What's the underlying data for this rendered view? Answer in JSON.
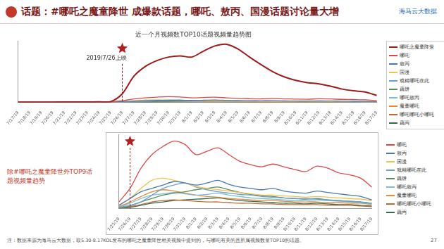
{
  "header": {
    "title": "话题：#哪吒之魔童降世 成爆款话题，哪吒、敖丙、国漫话题讨论量大增",
    "brand": "海马云大数据"
  },
  "chart_data": [
    {
      "type": "line",
      "title": "近一个月视频数TOP10话题视频量趋势图",
      "categories": [
        "7/17/19",
        "7/18/19",
        "7/19/19",
        "7/20/19",
        "7/21/19",
        "7/22/19",
        "7/23/19",
        "7/24/19",
        "7/25/19",
        "7/26/19",
        "7/27/19",
        "7/28/19",
        "7/29/19",
        "7/30/19",
        "7/31/19",
        "8/1/19",
        "8/2/19",
        "8/3/19",
        "8/4/19",
        "8/5/19",
        "8/6/19",
        "8/7/19",
        "8/8/19",
        "8/9/19",
        "8/10/19",
        "8/11/19",
        "8/12/19",
        "8/13/19",
        "8/14/19",
        "8/15/19",
        "8/16/19",
        "8/17/19"
      ],
      "series": [
        {
          "name": "哪吒之魔童降世",
          "color": "#9e1b1b",
          "values": [
            0.5,
            0.5,
            0.6,
            0.6,
            0.7,
            0.7,
            0.8,
            1,
            1.5,
            15,
            45,
            62,
            72,
            78,
            80,
            78,
            88,
            97,
            100,
            92,
            78,
            65,
            53,
            44,
            38,
            34,
            32,
            28,
            23,
            20,
            18,
            12
          ]
        },
        {
          "name": "哪吒",
          "color": "#e04848",
          "values": [
            0.8,
            0.8,
            0.9,
            0.8,
            0.9,
            1,
            0.9,
            1,
            1,
            3,
            6,
            8,
            9.2,
            10,
            9.5,
            8,
            8.5,
            9,
            8,
            7,
            6.5,
            6.2,
            6.6,
            6.2,
            5.8,
            5.5,
            6.3,
            6,
            5.3,
            5,
            4.5,
            3.2
          ]
        },
        {
          "name": "敖丙",
          "color": "#4a78b5",
          "values": [
            0.3,
            0.3,
            0.3,
            0.3,
            0.4,
            0.4,
            0.4,
            0.4,
            0.5,
            1.5,
            2.5,
            3,
            3.5,
            4,
            3.8,
            3.5,
            3.8,
            4.2,
            3.6,
            3.2,
            3,
            2.8,
            3,
            2.6,
            2.4,
            2.3,
            2.6,
            2.4,
            2.2,
            2,
            1.8,
            1.3
          ]
        },
        {
          "name": "国漫",
          "color": "#f2c14e",
          "values": [
            0.4,
            0.4,
            0.4,
            0.4,
            0.4,
            0.4,
            0.5,
            0.5,
            0.5,
            1.5,
            3,
            4.2,
            4.5,
            4.2,
            3.8,
            3.3,
            3,
            2.8,
            2.6,
            2.4,
            2.2,
            2,
            2,
            1.9,
            1.8,
            1.7,
            1.8,
            1.7,
            1.6,
            1.5,
            1.4,
            1.2
          ]
        },
        {
          "name": "戏精哪吒在此",
          "color": "#6a9fd4",
          "values": [
            0.1,
            0.1,
            0.1,
            0.1,
            0.1,
            0.1,
            0.2,
            0.2,
            0.2,
            0.5,
            1,
            2,
            3,
            3.5,
            3.8,
            3.2,
            2.8,
            2.5,
            2.3,
            2.1,
            2,
            1.8,
            1.7,
            1.6,
            1.5,
            1.5,
            1.4,
            1.3,
            1.2,
            1.1,
            1,
            0.8
          ]
        },
        {
          "name": "藕饼",
          "color": "#5b8c5a",
          "values": [
            0.1,
            0.1,
            0.1,
            0.1,
            0.1,
            0.1,
            0.1,
            0.1,
            0.1,
            0.4,
            1,
            1.5,
            2,
            2.3,
            2.5,
            2.8,
            3,
            3.2,
            2.8,
            2.4,
            2.1,
            1.9,
            1.8,
            1.6,
            1.5,
            1.4,
            1.5,
            1.3,
            1.2,
            1.1,
            1,
            0.8
          ]
        },
        {
          "name": "哪吒敖丙",
          "color": "#7bbcd9",
          "values": [
            0.1,
            0.1,
            0.1,
            0.1,
            0.2,
            0.2,
            0.2,
            0.2,
            0.2,
            0.8,
            1.5,
            2,
            2.2,
            2.4,
            2.2,
            2,
            2.1,
            2.3,
            2,
            1.8,
            1.6,
            1.5,
            1.4,
            1.3,
            1.2,
            1.2,
            1.3,
            1.2,
            1.1,
            1,
            0.9,
            0.7
          ]
        },
        {
          "name": "魔童哪吒",
          "color": "#e88a3a",
          "values": [
            0.2,
            0.2,
            0.2,
            0.2,
            0.2,
            0.3,
            0.3,
            0.3,
            0.3,
            1,
            1.8,
            2.5,
            2.8,
            2.6,
            2.3,
            2,
            1.8,
            1.7,
            1.5,
            1.4,
            1.3,
            1.2,
            1.2,
            1.1,
            1,
            1,
            1,
            0.9,
            0.9,
            0.8,
            0.8,
            0.6
          ]
        },
        {
          "name": "哪吒哪吒小哪吒",
          "color": "#c06a30",
          "values": [
            0.1,
            0.1,
            0.1,
            0.1,
            0.1,
            0.1,
            0.1,
            0.1,
            0.1,
            0.3,
            0.6,
            1,
            1.2,
            1.3,
            1.2,
            1.1,
            1,
            1,
            0.9,
            0.8,
            0.8,
            0.7,
            0.7,
            0.6,
            0.6,
            0.6,
            0.6,
            0.5,
            0.5,
            0.5,
            0.4,
            0.3
          ]
        },
        {
          "name": "藕丙",
          "color": "#2f6b4f",
          "values": [
            0.1,
            0.1,
            0.1,
            0.1,
            0.1,
            0.1,
            0.1,
            0.1,
            0.1,
            0.2,
            0.5,
            0.8,
            1,
            1.2,
            1.3,
            1.4,
            1.5,
            1.6,
            1.4,
            1.2,
            1.1,
            1,
            0.9,
            0.8,
            0.8,
            0.7,
            0.8,
            0.7,
            0.6,
            0.6,
            0.5,
            0.4
          ]
        }
      ],
      "ylim": [
        0,
        105
      ],
      "grid": false,
      "legend": "right",
      "tick_labels": "x",
      "annotations": [
        {
          "x": "7/26/19",
          "label": "2019/7/26上映",
          "marker": "star"
        }
      ]
    },
    {
      "type": "line",
      "title": "除#哪吒之魔童降世外TOP9话题视频量趋势",
      "categories": [
        "7/25/19",
        "7/26/19",
        "7/27/19",
        "7/28/19",
        "7/29/19",
        "7/30/19",
        "7/31/19",
        "8/1/19",
        "8/2/19",
        "8/3/19",
        "8/4/19",
        "8/5/19",
        "8/6/19",
        "8/7/19",
        "8/8/19",
        "8/9/19",
        "8/10/19",
        "8/11/19",
        "8/12/19",
        "8/13/19",
        "8/14/19",
        "8/15/19",
        "8/16/19",
        "8/17/19"
      ],
      "series": [
        {
          "name": "哪吒",
          "color": "#e04848",
          "values": [
            1,
            3,
            6,
            8,
            9.2,
            10,
            9.5,
            8,
            8.5,
            9,
            8,
            7,
            6.5,
            6.2,
            6.6,
            6.2,
            5.8,
            5.5,
            6.3,
            6,
            5.3,
            5,
            4.5,
            3.2
          ]
        },
        {
          "name": "敖丙",
          "color": "#4a78b5",
          "values": [
            0.5,
            1.5,
            2.5,
            3,
            3.5,
            4,
            3.8,
            3.5,
            3.8,
            4.2,
            3.6,
            3.2,
            3,
            2.8,
            3,
            2.6,
            2.4,
            2.3,
            2.6,
            2.4,
            2.2,
            2,
            1.8,
            1.3
          ]
        },
        {
          "name": "国漫",
          "color": "#f2c14e",
          "values": [
            0.5,
            1.5,
            3,
            4.2,
            4.5,
            4.2,
            3.8,
            3.3,
            3,
            2.8,
            2.6,
            2.4,
            2.2,
            2,
            2,
            1.9,
            1.8,
            1.7,
            1.8,
            1.7,
            1.6,
            1.5,
            1.4,
            1.2
          ]
        },
        {
          "name": "戏精哪吒在此",
          "color": "#6a9fd4",
          "values": [
            0.2,
            0.5,
            1,
            2,
            3,
            3.5,
            3.8,
            3.2,
            2.8,
            2.5,
            2.3,
            2.1,
            2,
            1.8,
            1.7,
            1.6,
            1.5,
            1.5,
            1.4,
            1.3,
            1.2,
            1.1,
            1,
            0.8
          ]
        },
        {
          "name": "藕饼",
          "color": "#5b8c5a",
          "values": [
            0.1,
            0.4,
            1,
            1.5,
            2,
            2.3,
            2.5,
            2.8,
            3,
            3.2,
            2.8,
            2.4,
            2.1,
            1.9,
            1.8,
            1.6,
            1.5,
            1.4,
            1.5,
            1.3,
            1.2,
            1.1,
            1,
            0.8
          ]
        },
        {
          "name": "哪吒敖丙",
          "color": "#7bbcd9",
          "values": [
            0.2,
            0.8,
            1.5,
            2,
            2.2,
            2.4,
            2.2,
            2,
            2.1,
            2.3,
            2,
            1.8,
            1.6,
            1.5,
            1.4,
            1.3,
            1.2,
            1.2,
            1.3,
            1.2,
            1.1,
            1,
            0.9,
            0.7
          ]
        },
        {
          "name": "魔童哪吒",
          "color": "#e88a3a",
          "values": [
            0.3,
            1,
            1.8,
            2.5,
            2.8,
            2.6,
            2.3,
            2,
            1.8,
            1.7,
            1.5,
            1.4,
            1.3,
            1.2,
            1.2,
            1.1,
            1,
            1,
            1,
            0.9,
            0.9,
            0.8,
            0.8,
            0.6
          ]
        },
        {
          "name": "哪吒哪吒小哪吒",
          "color": "#c06a30",
          "values": [
            0.1,
            0.3,
            0.6,
            1,
            1.2,
            1.3,
            1.2,
            1.1,
            1,
            1,
            0.9,
            0.8,
            0.8,
            0.7,
            0.7,
            0.6,
            0.6,
            0.6,
            0.6,
            0.5,
            0.5,
            0.5,
            0.4,
            0.3
          ]
        },
        {
          "name": "藕丙",
          "color": "#2f6b4f",
          "values": [
            0.1,
            0.2,
            0.5,
            0.8,
            1,
            1.2,
            1.3,
            1.4,
            1.5,
            1.6,
            1.4,
            1.2,
            1.1,
            1,
            0.9,
            0.8,
            0.8,
            0.7,
            0.8,
            0.7,
            0.6,
            0.6,
            0.5,
            0.4
          ]
        }
      ],
      "ylim": [
        0,
        11
      ],
      "grid": false,
      "legend": "right",
      "tick_labels": "x",
      "annotations": [
        {
          "x": "7/26/19",
          "marker": "star"
        }
      ]
    }
  ],
  "footer": {
    "note": "注：数据来源为海马云大数据，取5.30-8.17KOL发布的哪吒之魔童降世相关视频中提到的，与哪吒有关的且所属视频数量TOP10的话题。",
    "page": "27"
  }
}
